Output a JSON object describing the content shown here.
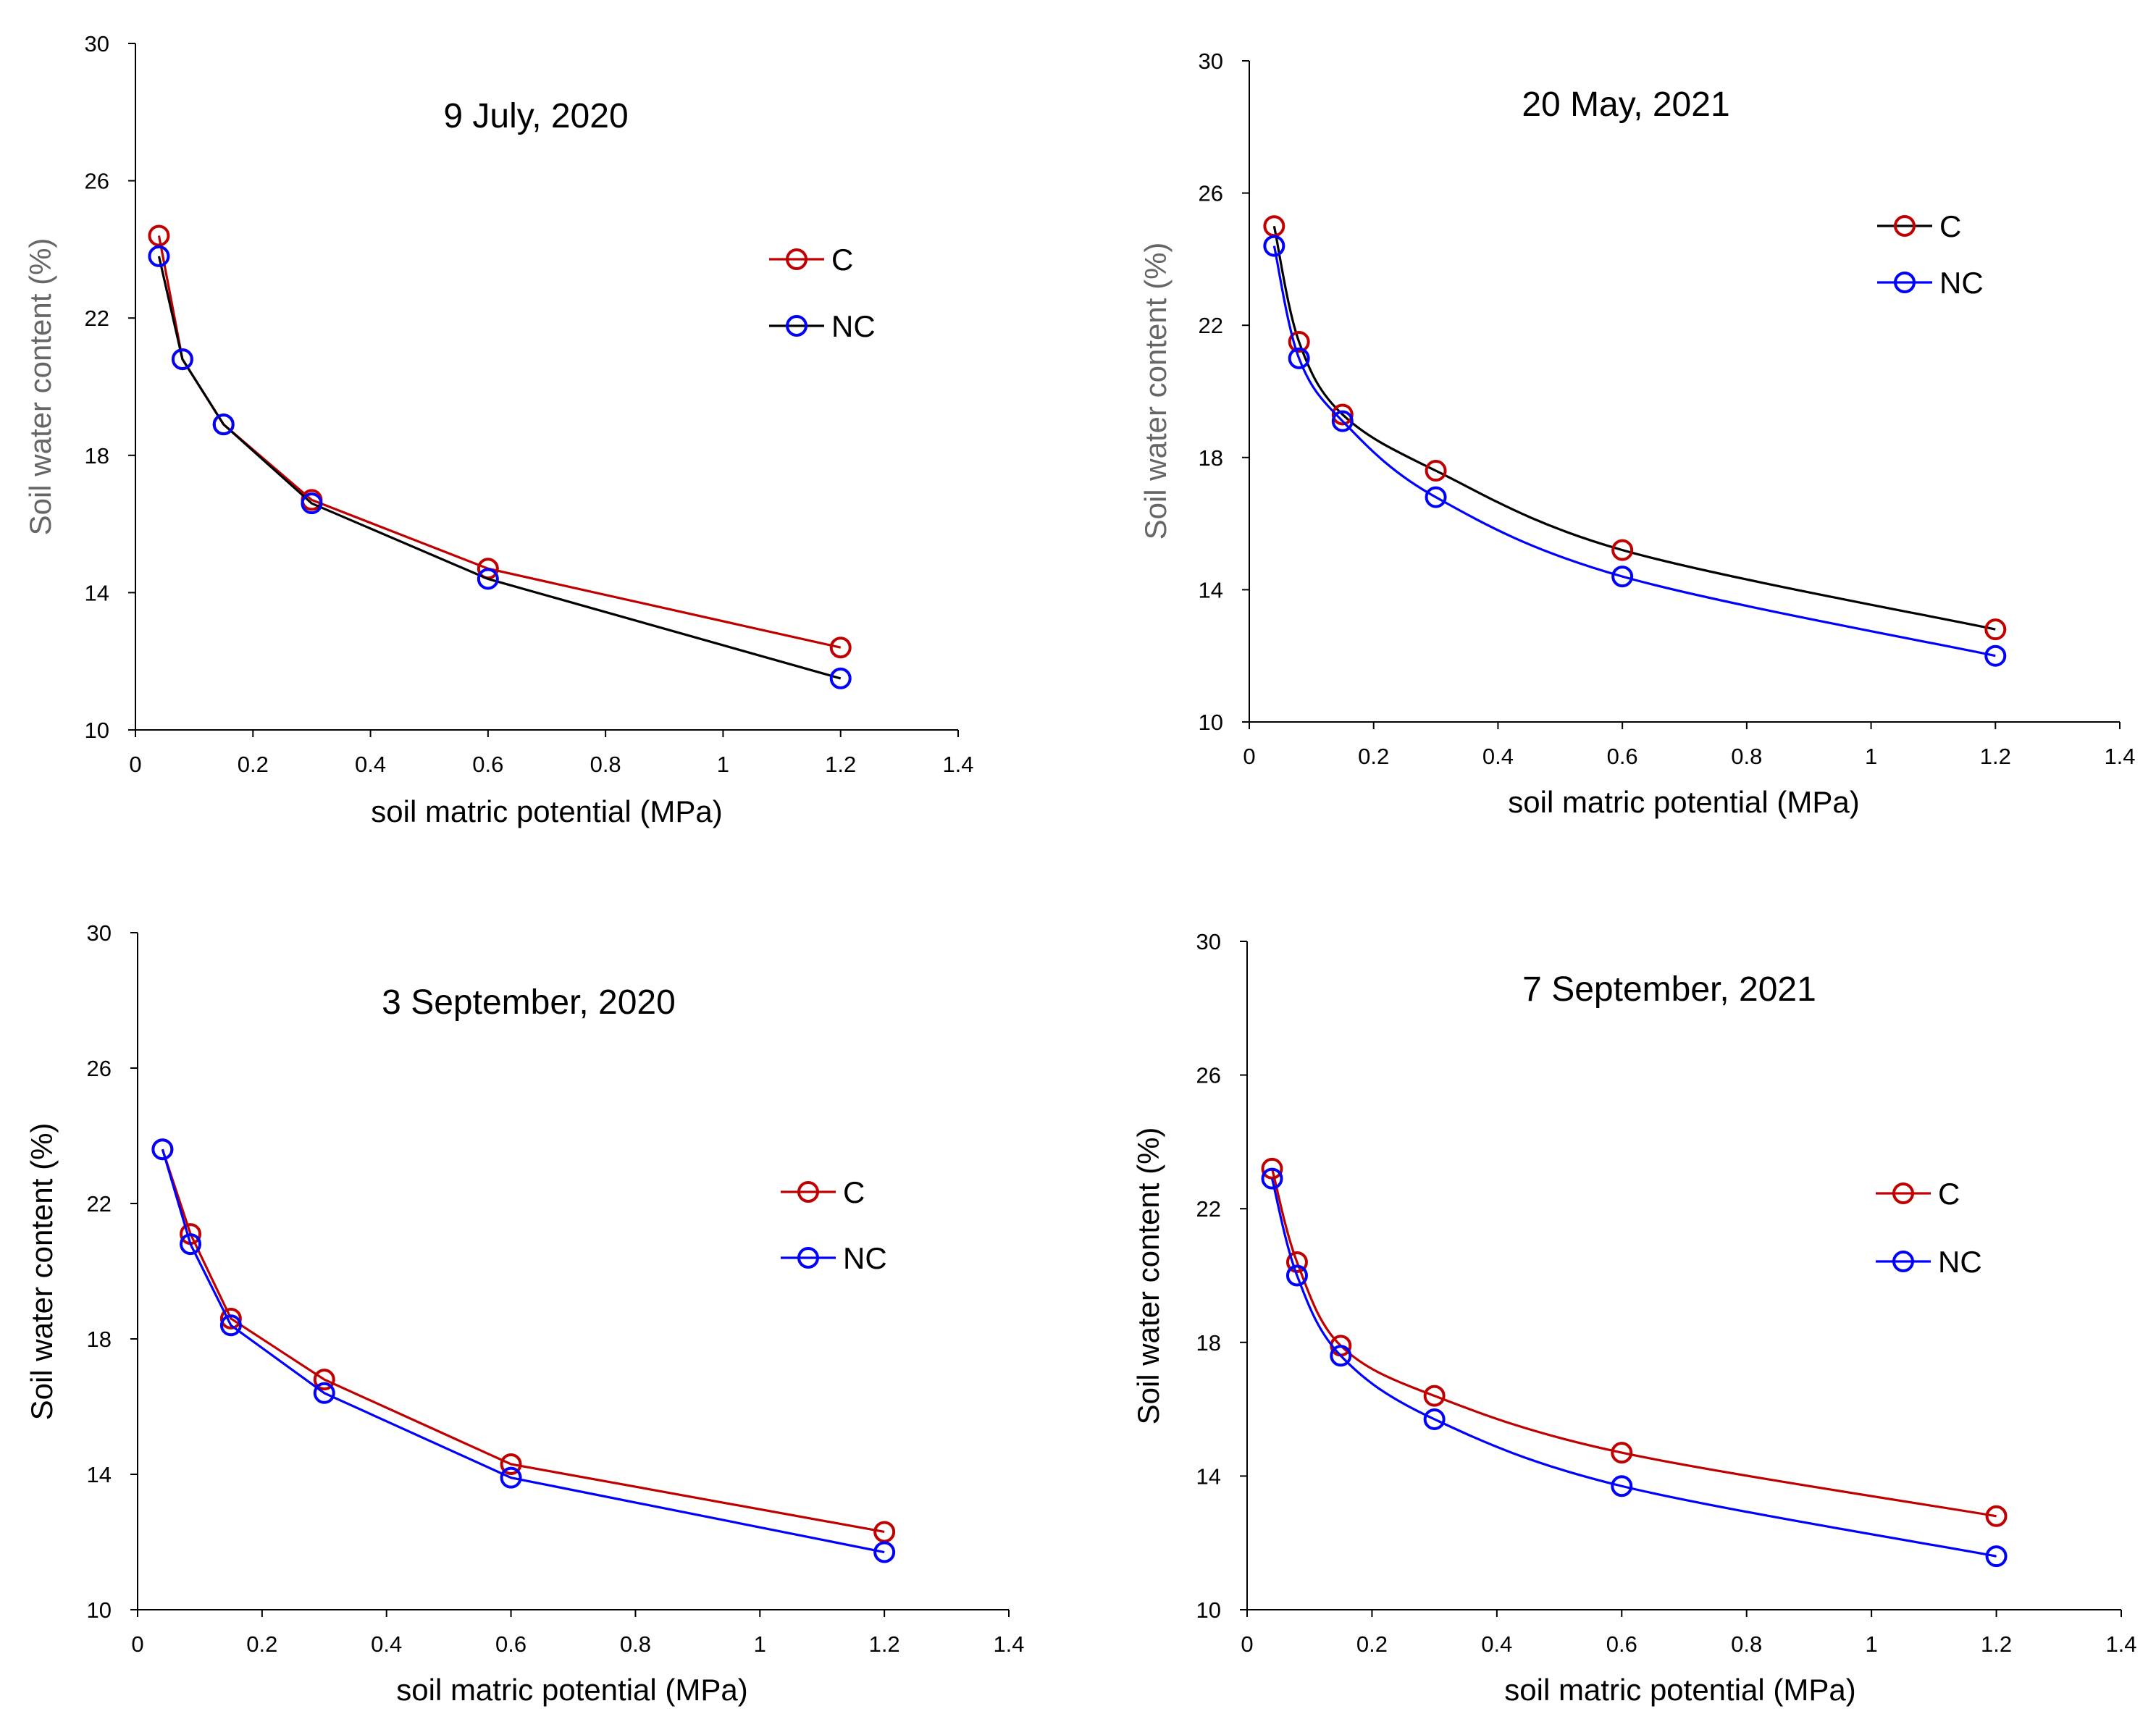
{
  "chart_data": [
    {
      "type": "line",
      "title": "9 July, 2020",
      "xlabel": "soil matric potential (MPa)",
      "ylabel": "Soil water content (%)",
      "ylabel_color": "#666666",
      "smooth": false,
      "xlim": [
        0,
        1.4
      ],
      "ylim": [
        10,
        30
      ],
      "xticks": [
        0,
        0.2,
        0.4,
        0.6,
        0.8,
        1,
        1.2,
        1.4
      ],
      "xtick_labels": [
        "0",
        "0.2",
        "0.4",
        "0.6",
        "0.8",
        "1",
        "1.2",
        "1.4"
      ],
      "yticks": [
        10,
        14,
        18,
        22,
        26,
        30
      ],
      "ytick_labels": [
        "10",
        "14",
        "18",
        "22",
        "26",
        "30"
      ],
      "series": [
        {
          "name": "C",
          "line_color": "#c00000",
          "marker_color": "#c00000",
          "x": [
            0.04,
            0.08,
            0.15,
            0.3,
            0.6,
            1.2
          ],
          "y": [
            24.4,
            20.8,
            18.9,
            16.7,
            14.7,
            12.4
          ]
        },
        {
          "name": "NC",
          "line_color": "#000000",
          "marker_color": "#0000ff",
          "x": [
            0.04,
            0.08,
            0.15,
            0.3,
            0.6,
            1.2
          ],
          "y": [
            23.8,
            20.8,
            18.9,
            16.6,
            14.4,
            11.5
          ]
        }
      ]
    },
    {
      "type": "line",
      "title": "20 May, 2021",
      "xlabel": "soil matric potential (MPa)",
      "ylabel": "Soil water content (%)",
      "ylabel_color": "#666666",
      "smooth": true,
      "xlim": [
        0,
        1.4
      ],
      "ylim": [
        10,
        30
      ],
      "xticks": [
        0,
        0.2,
        0.4,
        0.6,
        0.8,
        1,
        1.2,
        1.4
      ],
      "xtick_labels": [
        "0",
        "0.2",
        "0.4",
        "0.6",
        "0.8",
        "1",
        "1.2",
        "1.4"
      ],
      "yticks": [
        10,
        14,
        18,
        22,
        26,
        30
      ],
      "ytick_labels": [
        "10",
        "14",
        "18",
        "22",
        "26",
        "30"
      ],
      "series": [
        {
          "name": "C",
          "line_color": "#000000",
          "marker_color": "#c00000",
          "x": [
            0.04,
            0.08,
            0.15,
            0.3,
            0.6,
            1.2
          ],
          "y": [
            25.0,
            21.5,
            19.3,
            17.6,
            15.2,
            12.8
          ]
        },
        {
          "name": "NC",
          "line_color": "#0000ff",
          "marker_color": "#0000ff",
          "x": [
            0.04,
            0.08,
            0.15,
            0.3,
            0.6,
            1.2
          ],
          "y": [
            24.4,
            21.0,
            19.1,
            16.8,
            14.4,
            12.0
          ]
        }
      ]
    },
    {
      "type": "line",
      "title": "3 September, 2020",
      "xlabel": "soil matric potential (MPa)",
      "ylabel": "Soil water content (%)",
      "ylabel_color": "#000000",
      "smooth": false,
      "xlim": [
        0,
        1.4
      ],
      "ylim": [
        10,
        30
      ],
      "xticks": [
        0,
        0.2,
        0.4,
        0.6,
        0.8,
        1,
        1.2,
        1.4
      ],
      "xtick_labels": [
        "0",
        "0.2",
        "0.4",
        "0.6",
        "0.8",
        "1",
        "1.2",
        "1.4"
      ],
      "yticks": [
        10,
        14,
        18,
        22,
        26,
        30
      ],
      "ytick_labels": [
        "10",
        "14",
        "18",
        "22",
        "26",
        "30"
      ],
      "series": [
        {
          "name": "C",
          "line_color": "#c00000",
          "marker_color": "#c00000",
          "x": [
            0.04,
            0.085,
            0.15,
            0.3,
            0.6,
            1.2
          ],
          "y": [
            23.6,
            21.1,
            18.6,
            16.8,
            14.3,
            12.3
          ]
        },
        {
          "name": "NC",
          "line_color": "#0000ff",
          "marker_color": "#0000ff",
          "x": [
            0.04,
            0.085,
            0.15,
            0.3,
            0.6,
            1.2
          ],
          "y": [
            23.6,
            20.8,
            18.4,
            16.4,
            13.9,
            11.7
          ]
        }
      ]
    },
    {
      "type": "line",
      "title": "7 September, 2021",
      "xlabel": "soil matric potential (MPa)",
      "ylabel": "Soil water content (%)",
      "ylabel_color": "#000000",
      "smooth": true,
      "xlim": [
        0,
        1.4
      ],
      "ylim": [
        10,
        30
      ],
      "xticks": [
        0,
        0.2,
        0.4,
        0.6,
        0.8,
        1,
        1.2,
        1.4
      ],
      "xtick_labels": [
        "0",
        "0.2",
        "0.4",
        "0.6",
        "0.8",
        "1",
        "1.2",
        "1.4"
      ],
      "yticks": [
        10,
        14,
        18,
        22,
        26,
        30
      ],
      "ytick_labels": [
        "10",
        "14",
        "18",
        "22",
        "26",
        "30"
      ],
      "series": [
        {
          "name": "C",
          "line_color": "#c00000",
          "marker_color": "#c00000",
          "x": [
            0.04,
            0.08,
            0.15,
            0.3,
            0.6,
            1.2
          ],
          "y": [
            23.2,
            20.4,
            17.9,
            16.4,
            14.7,
            12.8
          ]
        },
        {
          "name": "NC",
          "line_color": "#0000ff",
          "marker_color": "#0000ff",
          "x": [
            0.04,
            0.08,
            0.15,
            0.3,
            0.6,
            1.2
          ],
          "y": [
            22.9,
            20.0,
            17.6,
            15.7,
            13.7,
            11.6
          ]
        }
      ]
    }
  ]
}
